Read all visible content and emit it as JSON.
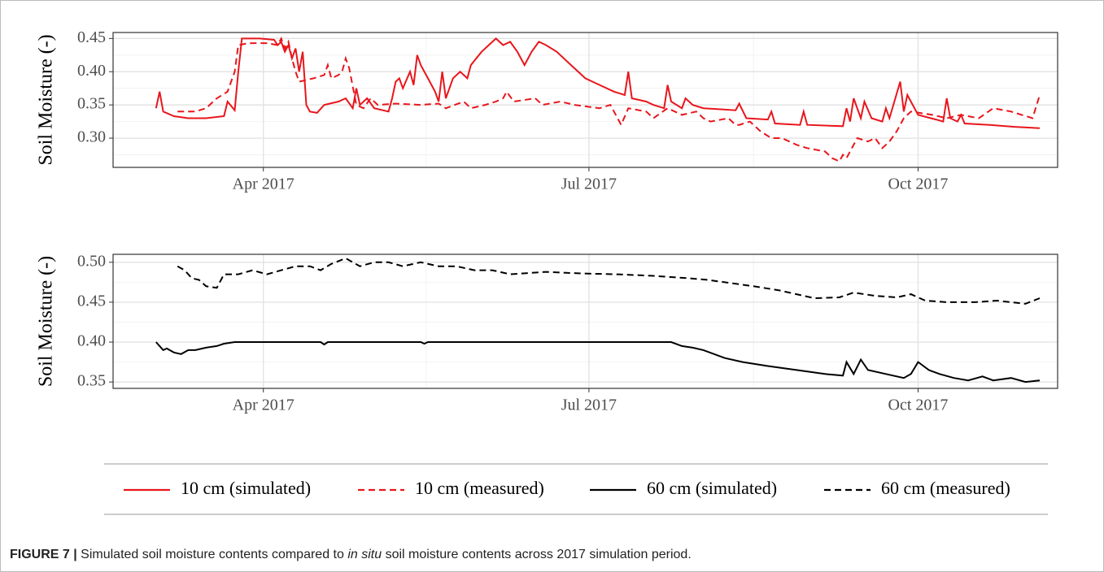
{
  "chart_data": [
    {
      "type": "line",
      "ylabel": "Soil Moisture (-)",
      "xlim": [
        49,
        313
      ],
      "ylim": [
        0.256,
        0.459
      ],
      "grid": true,
      "xticks": [
        {
          "value": 91,
          "label": "Apr 2017"
        },
        {
          "value": 182,
          "label": "Jul 2017"
        },
        {
          "value": 274,
          "label": "Oct 2017"
        }
      ],
      "yticks": [
        {
          "value": 0.3,
          "label": "0.30"
        },
        0.35,
        {
          "value": 0.4,
          "label": "0.40"
        },
        0.45
      ],
      "series": [
        {
          "name": "10 cm (simulated)",
          "color": "#e8161c",
          "linestyle": "solid",
          "x": [
            61,
            62,
            63,
            66,
            70,
            75,
            80,
            81,
            83,
            84,
            85,
            90,
            94,
            95,
            96,
            97,
            98,
            99,
            100,
            101,
            102,
            103,
            104,
            106,
            108,
            112,
            114,
            116,
            117,
            118,
            120,
            122,
            126,
            127,
            128,
            129,
            130,
            132,
            133,
            134,
            135,
            137,
            139,
            140,
            141,
            142,
            144,
            146,
            148,
            149,
            152,
            154,
            156,
            158,
            160,
            162,
            164,
            166,
            168,
            170,
            173,
            177,
            181,
            185,
            189,
            192,
            193,
            194,
            198,
            200,
            203,
            204,
            205,
            208,
            209,
            211,
            214,
            223,
            224,
            226,
            232,
            233,
            234,
            241,
            242,
            243,
            253,
            254,
            255,
            256,
            258,
            259,
            261,
            264,
            265,
            266,
            269,
            270,
            271,
            274,
            279,
            281,
            282,
            283,
            285,
            286,
            287,
            294,
            301,
            308
          ],
          "values": [
            0.345,
            0.37,
            0.34,
            0.333,
            0.33,
            0.33,
            0.333,
            0.355,
            0.342,
            0.4,
            0.45,
            0.45,
            0.448,
            0.44,
            0.445,
            0.43,
            0.44,
            0.42,
            0.435,
            0.4,
            0.43,
            0.35,
            0.34,
            0.338,
            0.35,
            0.355,
            0.36,
            0.345,
            0.375,
            0.35,
            0.36,
            0.345,
            0.34,
            0.36,
            0.385,
            0.39,
            0.375,
            0.4,
            0.38,
            0.425,
            0.41,
            0.39,
            0.37,
            0.355,
            0.4,
            0.36,
            0.39,
            0.4,
            0.39,
            0.41,
            0.43,
            0.44,
            0.45,
            0.44,
            0.445,
            0.43,
            0.41,
            0.43,
            0.445,
            0.44,
            0.43,
            0.41,
            0.39,
            0.38,
            0.37,
            0.365,
            0.4,
            0.36,
            0.355,
            0.35,
            0.345,
            0.38,
            0.355,
            0.345,
            0.36,
            0.35,
            0.345,
            0.342,
            0.352,
            0.33,
            0.328,
            0.34,
            0.322,
            0.32,
            0.34,
            0.32,
            0.318,
            0.345,
            0.325,
            0.36,
            0.33,
            0.355,
            0.33,
            0.325,
            0.345,
            0.33,
            0.385,
            0.34,
            0.365,
            0.335,
            0.328,
            0.325,
            0.36,
            0.33,
            0.325,
            0.335,
            0.322,
            0.32,
            0.317,
            0.315
          ]
        },
        {
          "name": "10 cm (measured)",
          "color": "#e8161c",
          "linestyle": "dashed",
          "x": [
            67,
            72,
            75,
            78,
            81,
            83,
            84,
            87,
            92,
            95,
            96,
            97,
            98,
            99,
            100,
            101,
            105,
            108,
            109,
            110,
            112,
            113,
            114,
            115,
            117,
            119,
            121,
            123,
            128,
            135,
            140,
            142,
            147,
            149,
            153,
            156,
            158,
            159,
            161,
            167,
            169,
            174,
            178,
            185,
            188,
            191,
            193,
            198,
            200,
            204,
            208,
            212,
            214,
            216,
            221,
            223,
            224,
            227,
            230,
            233,
            236,
            240,
            243,
            248,
            250,
            252,
            253,
            254,
            257,
            260,
            262,
            264,
            266,
            268,
            269,
            270,
            272,
            278,
            282,
            286,
            291,
            295,
            300,
            303,
            306,
            308
          ],
          "values": [
            0.34,
            0.34,
            0.345,
            0.36,
            0.37,
            0.4,
            0.44,
            0.443,
            0.443,
            0.44,
            0.45,
            0.435,
            0.445,
            0.42,
            0.4,
            0.385,
            0.39,
            0.395,
            0.41,
            0.39,
            0.395,
            0.4,
            0.42,
            0.405,
            0.35,
            0.345,
            0.36,
            0.35,
            0.352,
            0.35,
            0.352,
            0.345,
            0.355,
            0.345,
            0.35,
            0.355,
            0.36,
            0.37,
            0.355,
            0.36,
            0.35,
            0.355,
            0.35,
            0.345,
            0.35,
            0.32,
            0.345,
            0.34,
            0.33,
            0.345,
            0.335,
            0.34,
            0.33,
            0.325,
            0.33,
            0.32,
            0.32,
            0.325,
            0.31,
            0.3,
            0.3,
            0.29,
            0.285,
            0.28,
            0.27,
            0.265,
            0.275,
            0.27,
            0.3,
            0.295,
            0.3,
            0.285,
            0.295,
            0.31,
            0.32,
            0.33,
            0.34,
            0.335,
            0.33,
            0.335,
            0.33,
            0.345,
            0.34,
            0.335,
            0.33,
            0.365
          ]
        }
      ]
    },
    {
      "type": "line",
      "ylabel": "Soil Moisture (-)",
      "xlim": [
        49,
        313
      ],
      "ylim": [
        0.342,
        0.51
      ],
      "grid": true,
      "xticks": [
        {
          "value": 91,
          "label": "Apr 2017"
        },
        {
          "value": 182,
          "label": "Jul 2017"
        },
        {
          "value": 274,
          "label": "Oct 2017"
        }
      ],
      "yticks": [
        0.35,
        {
          "value": 0.4,
          "label": "0.40"
        },
        0.45,
        {
          "value": 0.5,
          "label": "0.50"
        }
      ],
      "series": [
        {
          "name": "60 cm (simulated)",
          "color": "#000000",
          "linestyle": "solid",
          "x": [
            61,
            63,
            64,
            66,
            68,
            70,
            72,
            75,
            78,
            80,
            83,
            107,
            108,
            109,
            135,
            136,
            137,
            205,
            208,
            211,
            214,
            220,
            225,
            232,
            240,
            248,
            253,
            254,
            256,
            258,
            260,
            265,
            270,
            272,
            274,
            277,
            280,
            284,
            288,
            292,
            295,
            300,
            304,
            308
          ],
          "values": [
            0.4,
            0.39,
            0.392,
            0.387,
            0.385,
            0.39,
            0.39,
            0.393,
            0.395,
            0.398,
            0.4,
            0.4,
            0.397,
            0.4,
            0.4,
            0.398,
            0.4,
            0.4,
            0.395,
            0.393,
            0.39,
            0.38,
            0.375,
            0.37,
            0.365,
            0.36,
            0.358,
            0.375,
            0.36,
            0.378,
            0.365,
            0.36,
            0.355,
            0.36,
            0.375,
            0.365,
            0.36,
            0.355,
            0.352,
            0.357,
            0.352,
            0.355,
            0.35,
            0.352
          ]
        },
        {
          "name": "60 cm (measured)",
          "color": "#000000",
          "linestyle": "dashed",
          "x": [
            67,
            69,
            71,
            73,
            75,
            78,
            80,
            84,
            88,
            92,
            96,
            100,
            104,
            107,
            110,
            114,
            118,
            122,
            126,
            130,
            135,
            140,
            145,
            150,
            155,
            160,
            170,
            180,
            190,
            200,
            210,
            215,
            220,
            228,
            235,
            240,
            245,
            252,
            256,
            262,
            268,
            272,
            276,
            282,
            290,
            296,
            304,
            308
          ],
          "values": [
            0.495,
            0.49,
            0.48,
            0.478,
            0.47,
            0.468,
            0.485,
            0.485,
            0.49,
            0.485,
            0.49,
            0.495,
            0.495,
            0.49,
            0.498,
            0.505,
            0.495,
            0.5,
            0.5,
            0.495,
            0.5,
            0.495,
            0.495,
            0.49,
            0.49,
            0.485,
            0.488,
            0.486,
            0.485,
            0.483,
            0.48,
            0.478,
            0.475,
            0.47,
            0.465,
            0.46,
            0.455,
            0.456,
            0.462,
            0.458,
            0.456,
            0.46,
            0.452,
            0.45,
            0.45,
            0.452,
            0.448,
            0.455
          ]
        }
      ]
    }
  ],
  "caption": {
    "label": "FIGURE 7 |",
    "parts": [
      "Simulated soil moisture contents compared to ",
      "in situ",
      " soil moisture contents across 2017 simulation period."
    ]
  }
}
